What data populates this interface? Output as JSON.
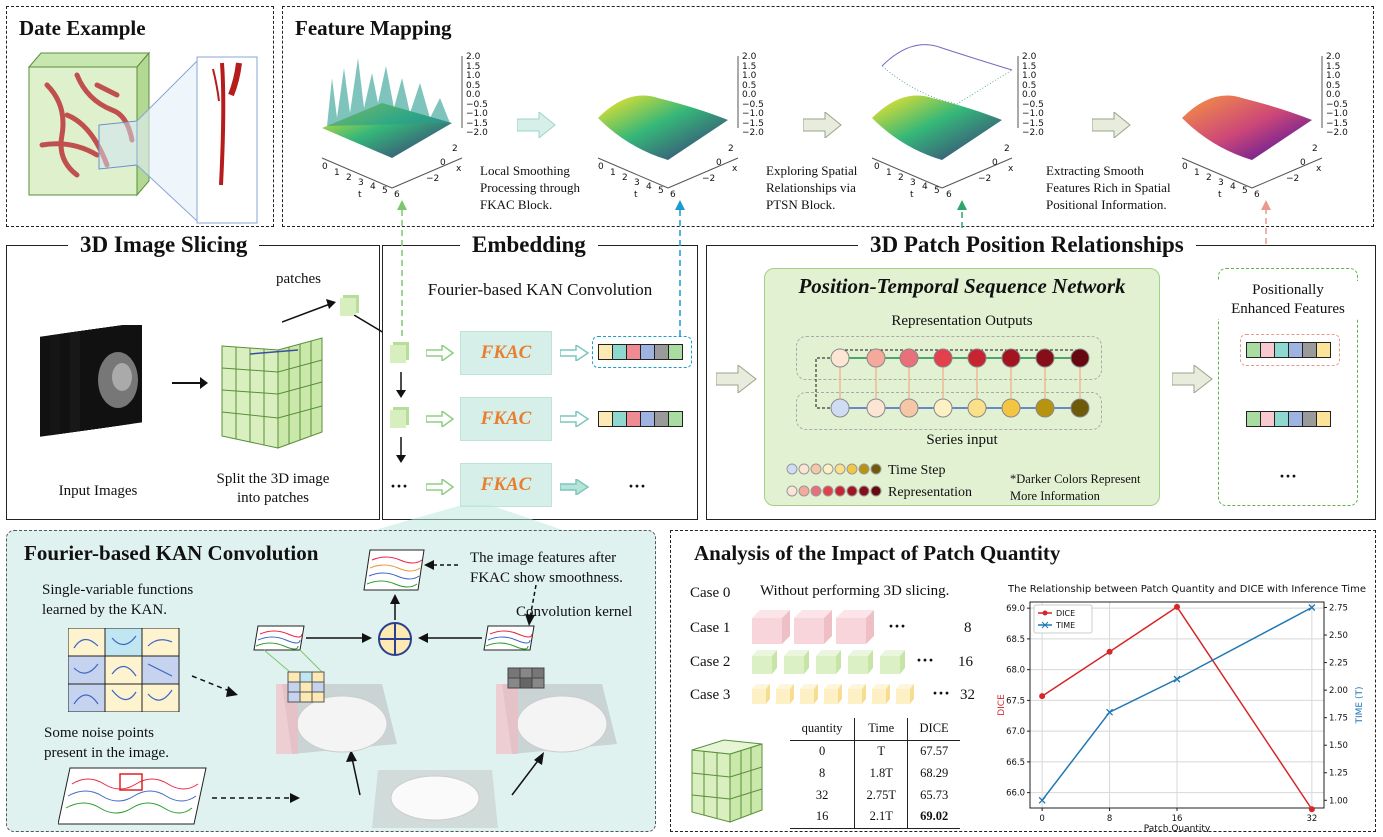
{
  "date_example": {
    "title": "Date Example"
  },
  "feature_mapping": {
    "title": "Feature Mapping",
    "z_ticks": [
      "2.0",
      "1.5",
      "1.0",
      "0.5",
      "0.0",
      "−0.5",
      "−1.0",
      "−1.5",
      "−2.0"
    ],
    "t_ticks": [
      "0",
      "1",
      "2",
      "3",
      "4",
      "5",
      "6"
    ],
    "x_ticks": [
      "2",
      "0",
      "−2"
    ],
    "t_label": "t",
    "x_label": "x",
    "step1": [
      "Local Smoothing",
      "Processing through",
      "FKAC Block."
    ],
    "step2": [
      "Exploring Spatial",
      "Relationships via",
      "PTSN Block."
    ],
    "step3": [
      "Extracting Smooth",
      "Features Rich in Spatial",
      "Positional Information."
    ]
  },
  "slicing": {
    "title": "3D Image Slicing",
    "patches_label": "patches",
    "input_label": "Input Images",
    "split_label": [
      "Split the 3D image",
      "into patches"
    ]
  },
  "embedding": {
    "title": "Embedding",
    "subtitle": "Fourier-based KAN Convolution",
    "block_label": "FKAC",
    "ellipsis": "···"
  },
  "patch_rel": {
    "title": "3D Patch Position Relationships",
    "network_title": "Position-Temporal Sequence Network",
    "outputs_label": "Representation Outputs",
    "series_label": "Series input",
    "legend_time": "Time Step",
    "legend_repr": "Representation",
    "note": [
      "*Darker Colors Represent",
      "More Information"
    ],
    "enhanced_label": [
      "Positionally",
      "Enhanced Features"
    ],
    "ellipsis": "···"
  },
  "fkac_detail": {
    "title": "Fourier-based KAN Convolution",
    "single_var": [
      "Single-variable functions",
      "learned by the KAN."
    ],
    "noise": [
      "Some noise points",
      "present in the image."
    ],
    "smooth": [
      "The image features after",
      "FKAC show smoothness."
    ],
    "kernel": "Convolution kernel"
  },
  "analysis": {
    "title": "Analysis of the Impact of Patch Quantity",
    "cases": [
      {
        "label": "Case 0",
        "text": "Without performing 3D slicing.",
        "count": ""
      },
      {
        "label": "Case 1",
        "text": "",
        "count": "8"
      },
      {
        "label": "Case 2",
        "text": "",
        "count": "16"
      },
      {
        "label": "Case 3",
        "text": "",
        "count": "32"
      }
    ],
    "ellipsis": "···",
    "table_header": [
      "quantity",
      "Time",
      "DICE"
    ],
    "table_rows": [
      [
        "0",
        "T",
        "67.57"
      ],
      [
        "8",
        "1.8T",
        "68.29"
      ],
      [
        "32",
        "2.75T",
        "65.73"
      ],
      [
        "16",
        "2.1T",
        "69.02"
      ]
    ]
  },
  "chart_data": {
    "type": "line",
    "title": "The Relationship between Patch Quantity and DICE with Inference Time",
    "xlabel": "Patch Quantity",
    "ylabel": "DICE",
    "y2label": "TIME (T)",
    "categories": [
      "0",
      "8",
      "16",
      "32"
    ],
    "x_tick_labels": [
      "0",
      "8",
      "16",
      "32"
    ],
    "ylim": [
      65.75,
      69.1
    ],
    "y_ticks": [
      "66.0",
      "66.5",
      "67.0",
      "67.5",
      "68.0",
      "68.5",
      "69.0"
    ],
    "y2lim": [
      0.93,
      2.8
    ],
    "y2_ticks": [
      "1.00",
      "1.25",
      "1.50",
      "1.75",
      "2.00",
      "2.25",
      "2.50",
      "2.75"
    ],
    "grid": true,
    "legend_position": "top-left",
    "series": [
      {
        "name": "DICE",
        "axis": "left",
        "color": "#d62728",
        "marker": "circle",
        "values": [
          67.57,
          68.29,
          69.02,
          65.73
        ]
      },
      {
        "name": "TIME",
        "axis": "right",
        "color": "#1f77b4",
        "marker": "x",
        "values": [
          1.0,
          1.8,
          2.1,
          2.75
        ]
      }
    ]
  }
}
